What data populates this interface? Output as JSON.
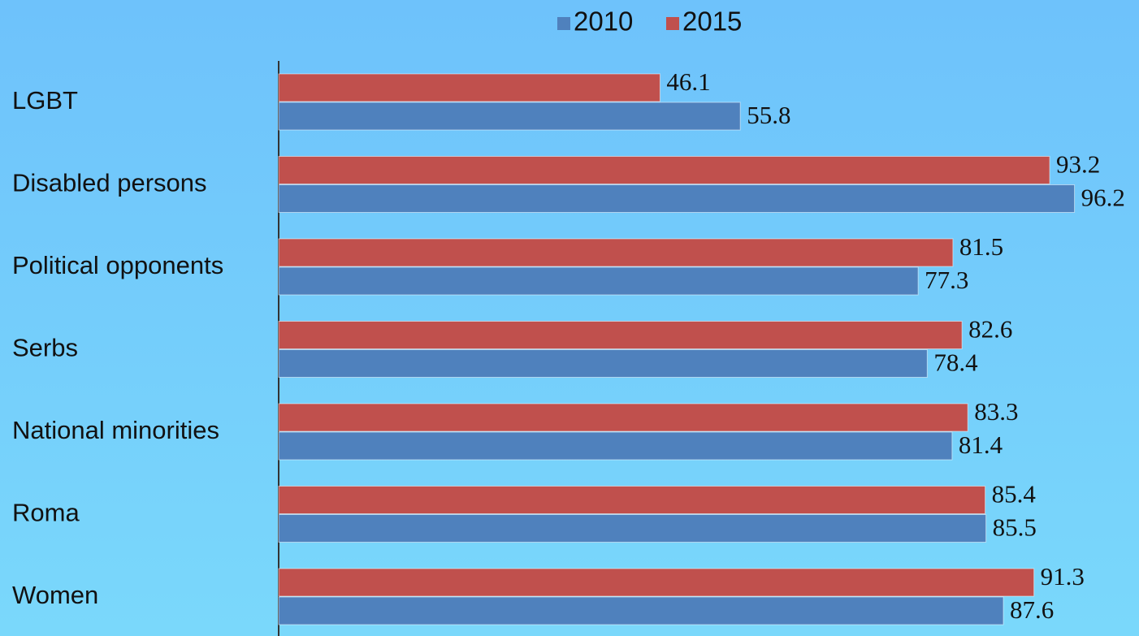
{
  "chart_data": {
    "type": "bar",
    "orientation": "horizontal",
    "categories": [
      "LGBT",
      "Disabled persons",
      "Political opponents",
      "Serbs",
      "National minorities",
      "Roma",
      "Women"
    ],
    "series": [
      {
        "name": "2010",
        "color": "#4f81bd",
        "values": [
          55.8,
          96.2,
          77.3,
          78.4,
          81.4,
          85.5,
          87.6
        ]
      },
      {
        "name": "2015",
        "color": "#c0504d",
        "values": [
          46.1,
          93.2,
          81.5,
          82.6,
          83.3,
          85.4,
          91.3
        ]
      }
    ],
    "xlim": [
      0,
      104
    ],
    "legend": "top"
  }
}
